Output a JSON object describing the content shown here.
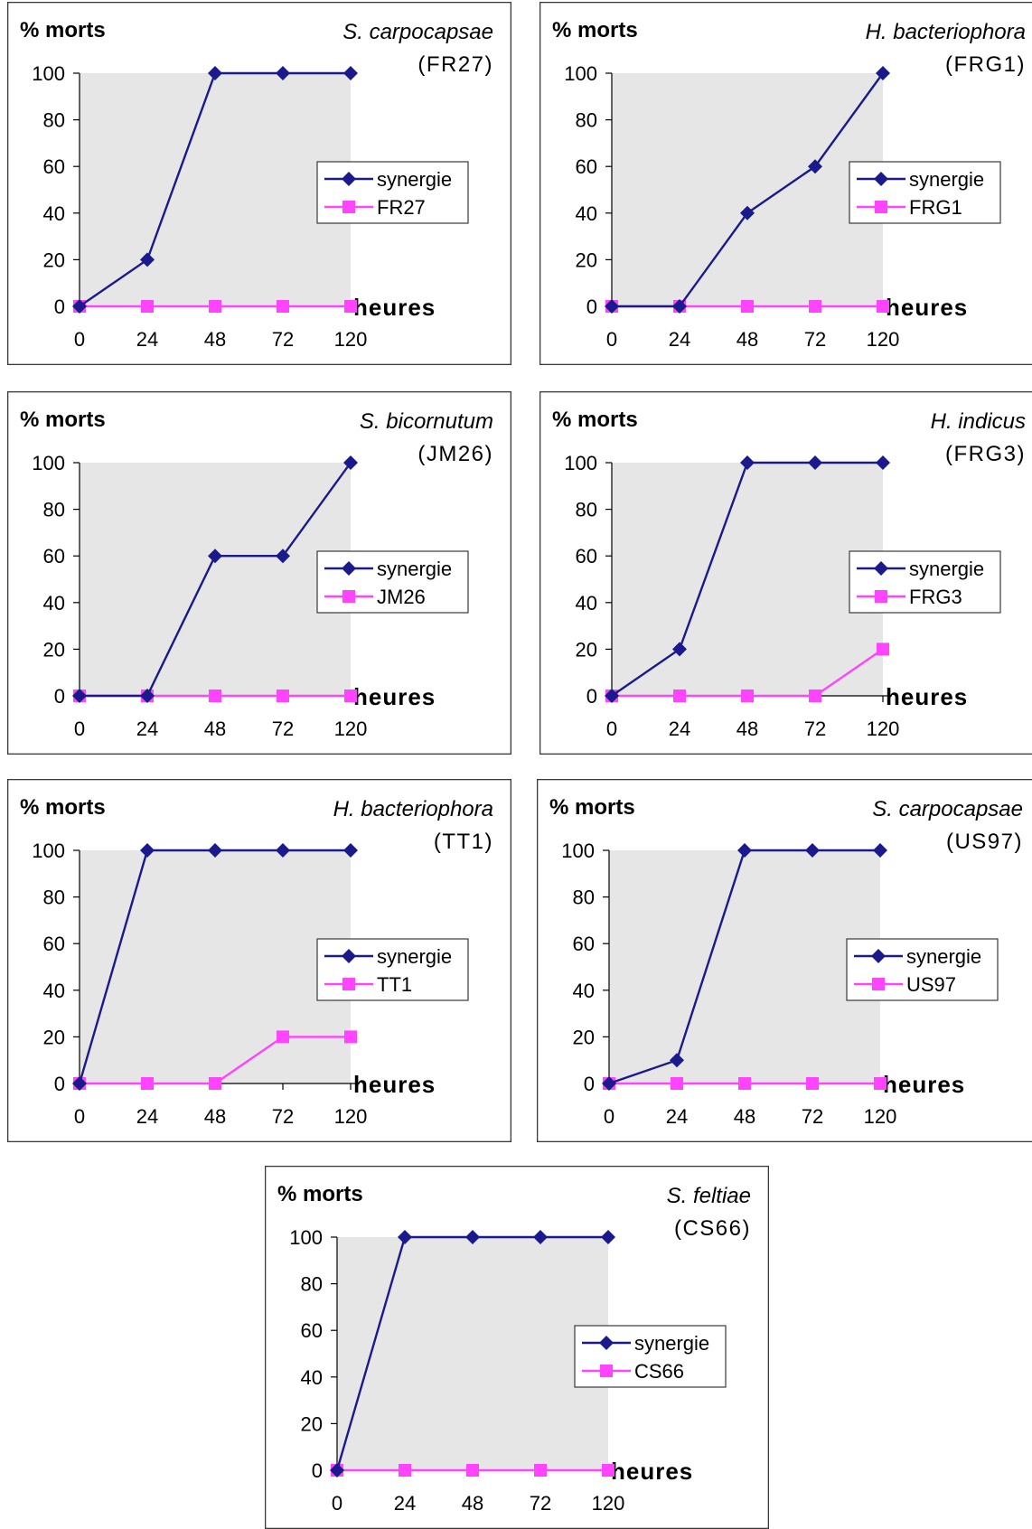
{
  "colors": {
    "synergie": "#1a1a8c",
    "strain": "#ff44ff",
    "plot_background": "#e6e6e6"
  },
  "chart_data": [
    {
      "type": "line",
      "title": "S. carpocapsae",
      "subtitle": "(FR27)",
      "ylabel": "%  morts",
      "xlabel": "heures",
      "categories": [
        "0",
        "24",
        "48",
        "72",
        "120"
      ],
      "ylim": [
        0,
        100
      ],
      "yticks": [
        "0",
        "20",
        "40",
        "60",
        "80",
        "100"
      ],
      "grid": false,
      "legend_position": "right",
      "series": [
        {
          "name": "synergie",
          "values": [
            0,
            20,
            100,
            100,
            100
          ],
          "marker": "diamond"
        },
        {
          "name": "FR27",
          "values": [
            0,
            0,
            0,
            0,
            0
          ],
          "marker": "square"
        }
      ]
    },
    {
      "type": "line",
      "title": "H. bacteriophora",
      "subtitle": "(FRG1)",
      "ylabel": "%  morts",
      "xlabel": "heures",
      "categories": [
        "0",
        "24",
        "48",
        "72",
        "120"
      ],
      "ylim": [
        0,
        100
      ],
      "yticks": [
        "0",
        "20",
        "40",
        "60",
        "80",
        "100"
      ],
      "grid": false,
      "legend_position": "right",
      "series": [
        {
          "name": "synergie",
          "values": [
            0,
            0,
            40,
            60,
            100
          ],
          "marker": "diamond"
        },
        {
          "name": "FRG1",
          "values": [
            0,
            0,
            0,
            0,
            0
          ],
          "marker": "square"
        }
      ]
    },
    {
      "type": "line",
      "title": "S. bicornutum",
      "subtitle": "(JM26)",
      "ylabel": "%  morts",
      "xlabel": "heures",
      "categories": [
        "0",
        "24",
        "48",
        "72",
        "120"
      ],
      "ylim": [
        0,
        100
      ],
      "yticks": [
        "0",
        "20",
        "40",
        "60",
        "80",
        "100"
      ],
      "grid": false,
      "legend_position": "right",
      "series": [
        {
          "name": "synergie",
          "values": [
            0,
            0,
            60,
            60,
            100
          ],
          "marker": "diamond"
        },
        {
          "name": "JM26",
          "values": [
            0,
            0,
            0,
            0,
            0
          ],
          "marker": "square"
        }
      ]
    },
    {
      "type": "line",
      "title": "H. indicus",
      "subtitle": "(FRG3)",
      "ylabel": "%  morts",
      "xlabel": "heures",
      "categories": [
        "0",
        "24",
        "48",
        "72",
        "120"
      ],
      "ylim": [
        0,
        100
      ],
      "yticks": [
        "0",
        "20",
        "40",
        "60",
        "80",
        "100"
      ],
      "grid": false,
      "legend_position": "right",
      "series": [
        {
          "name": "synergie",
          "values": [
            0,
            20,
            100,
            100,
            100
          ],
          "marker": "diamond"
        },
        {
          "name": "FRG3",
          "values": [
            0,
            0,
            0,
            0,
            20
          ],
          "marker": "square"
        }
      ]
    },
    {
      "type": "line",
      "title": "H. bacteriophora",
      "subtitle": "(TT1)",
      "ylabel": "%  morts",
      "xlabel": "heures",
      "categories": [
        "0",
        "24",
        "48",
        "72",
        "120"
      ],
      "ylim": [
        0,
        100
      ],
      "yticks": [
        "0",
        "20",
        "40",
        "60",
        "80",
        "100"
      ],
      "grid": false,
      "legend_position": "right",
      "series": [
        {
          "name": "synergie",
          "values": [
            0,
            100,
            100,
            100,
            100
          ],
          "marker": "diamond"
        },
        {
          "name": "TT1",
          "values": [
            0,
            0,
            0,
            20,
            20
          ],
          "marker": "square"
        }
      ]
    },
    {
      "type": "line",
      "title": "S. carpocapsae",
      "subtitle": "(US97)",
      "ylabel": "%  morts",
      "xlabel": "heures",
      "categories": [
        "0",
        "24",
        "48",
        "72",
        "120"
      ],
      "ylim": [
        0,
        100
      ],
      "yticks": [
        "0",
        "20",
        "40",
        "60",
        "80",
        "100"
      ],
      "grid": false,
      "legend_position": "right",
      "series": [
        {
          "name": "synergie",
          "values": [
            0,
            10,
            100,
            100,
            100
          ],
          "marker": "diamond"
        },
        {
          "name": "US97",
          "values": [
            0,
            0,
            0,
            0,
            0
          ],
          "marker": "square"
        }
      ]
    },
    {
      "type": "line",
      "title": "S. feltiae",
      "subtitle": "(CS66)",
      "ylabel": "%  morts",
      "xlabel": "heures",
      "categories": [
        "0",
        "24",
        "48",
        "72",
        "120"
      ],
      "ylim": [
        0,
        100
      ],
      "yticks": [
        "0",
        "20",
        "40",
        "60",
        "80",
        "100"
      ],
      "grid": false,
      "legend_position": "right",
      "series": [
        {
          "name": "synergie",
          "values": [
            0,
            100,
            100,
            100,
            100
          ],
          "marker": "diamond"
        },
        {
          "name": "CS66",
          "values": [
            0,
            0,
            0,
            0,
            0
          ],
          "marker": "square"
        }
      ]
    }
  ]
}
